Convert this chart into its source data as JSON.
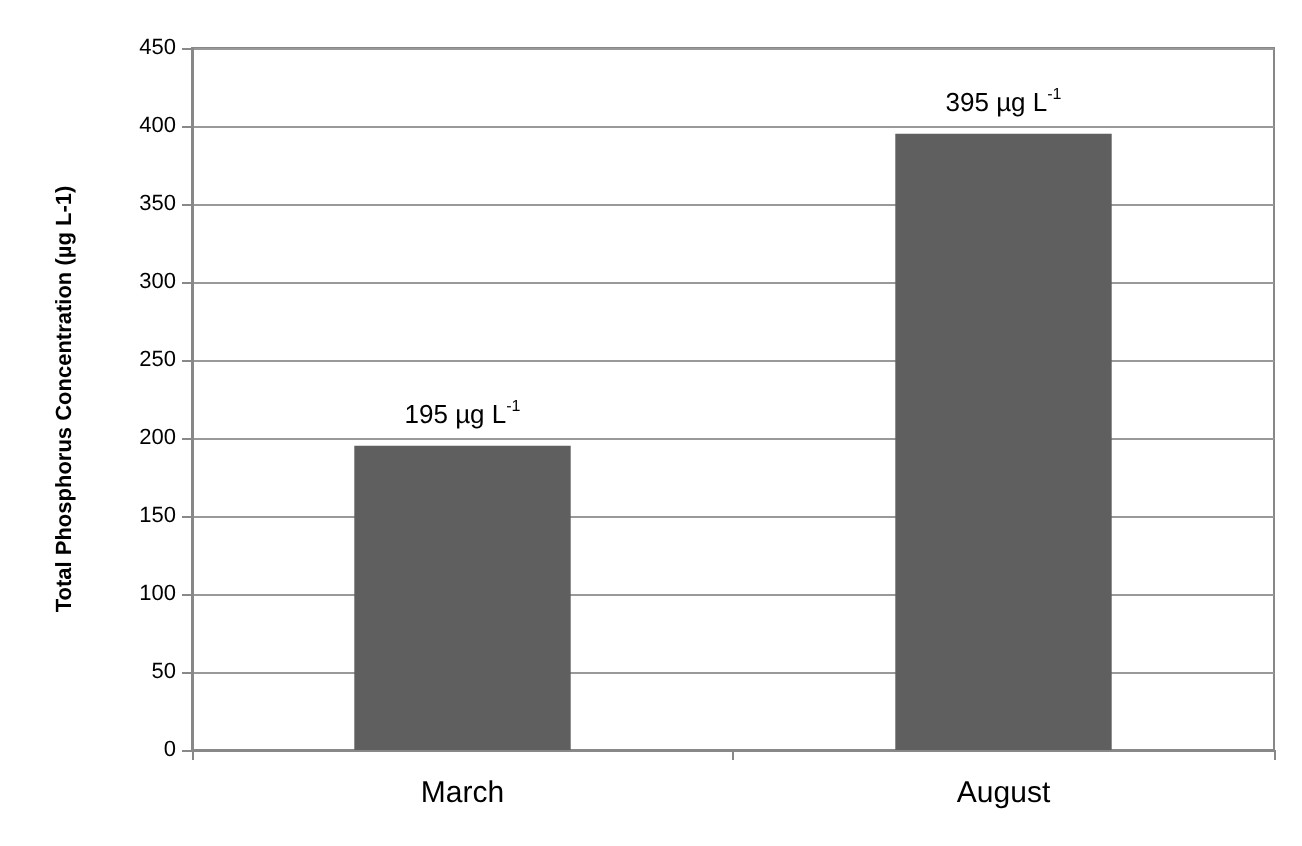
{
  "chart_data": {
    "type": "bar",
    "ylabel": "Total Phosphorus Concentration (µg L-1)",
    "categories": [
      "March",
      "August"
    ],
    "values": [
      195,
      395
    ],
    "color": "#5f5f5f",
    "value_labels": [
      "195 µg L$^{-1}$",
      "395 µg L$^{-1}$"
    ],
    "ylim": [
      0,
      450
    ],
    "yticks": [
      0,
      50,
      100,
      150,
      200,
      250,
      300,
      350,
      400,
      450
    ],
    "grid": "y"
  }
}
